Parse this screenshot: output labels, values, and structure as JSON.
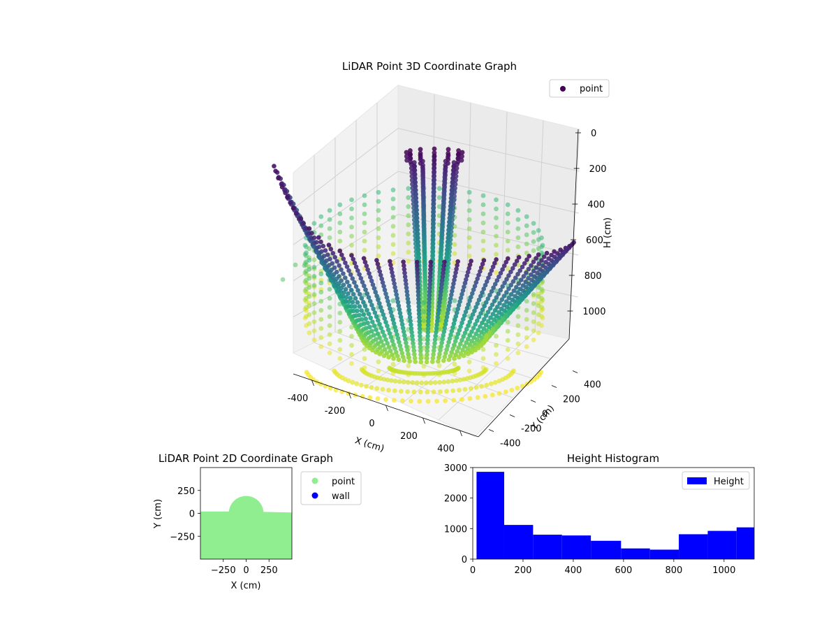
{
  "chart_data": [
    {
      "type": "scatter",
      "projection": "3d",
      "title": "LiDAR Point 3D Coordinate Graph",
      "xlabel": "X (cm)",
      "ylabel": "Y (cm)",
      "zlabel": "H (cm)",
      "xlim": [
        -500,
        500
      ],
      "ylim": [
        -500,
        500
      ],
      "zlim": [
        1120,
        0
      ],
      "z_inverted": true,
      "x_ticks": [
        "-400",
        "-200",
        "0",
        "200",
        "400"
      ],
      "y_ticks": [
        "-400",
        "-200",
        "0",
        "200",
        "400"
      ],
      "z_ticks": [
        "0",
        "200",
        "400",
        "600",
        "800",
        "1000"
      ],
      "colormap": "viridis",
      "legend": {
        "entries": [
          "point"
        ],
        "placement": "top-right"
      },
      "series": [
        {
          "name": "point",
          "color_by": "H",
          "components": [
            {
              "shape": "vertical column",
              "center": [
                0,
                0
              ],
              "radius": 60,
              "h_range": [
                0,
                1100
              ]
            },
            {
              "shape": "half-ring of tilted planar streaks",
              "center": [
                0,
                0
              ],
              "radius": 500,
              "h_range": [
                0,
                1120
              ]
            },
            {
              "shape": "cylindrical wall rings",
              "center": [
                0,
                0
              ],
              "radius": 450,
              "h_range": [
                650,
                1120
              ]
            }
          ]
        }
      ]
    },
    {
      "type": "scatter",
      "title": "LiDAR Point 2D Coordinate Graph",
      "xlabel": "X (cm)",
      "ylabel": "Y (cm)",
      "xlim": [
        -500,
        500
      ],
      "ylim": [
        -500,
        500
      ],
      "x_ticks": [
        "−250",
        "0",
        "250"
      ],
      "y_ticks": [
        "−250",
        "0",
        "250"
      ],
      "legend": {
        "entries": [
          "point",
          "wall"
        ],
        "placement": "outside-right"
      },
      "series": [
        {
          "name": "point",
          "color": "#90ee90",
          "region": {
            "floor_below_y": 20,
            "semicircle": {
              "center": [
                0,
                0
              ],
              "radius": 190
            },
            "right_step_y": 10
          }
        },
        {
          "name": "wall",
          "color": "#0000ff",
          "points": []
        }
      ]
    },
    {
      "type": "bar",
      "subtype": "histogram",
      "title": "Height Histogram",
      "xlabel": "",
      "ylabel": "",
      "xlim": [
        0,
        1120
      ],
      "ylim": [
        0,
        3000
      ],
      "x_ticks": [
        "0",
        "200",
        "400",
        "600",
        "800",
        "1000"
      ],
      "y_ticks": [
        "0",
        "1000",
        "2000",
        "3000"
      ],
      "legend": {
        "entries": [
          "Height"
        ],
        "placement": "top-right"
      },
      "series": [
        {
          "name": "Height",
          "color": "#0000ff",
          "bins": [
            [
              15,
              125,
              2860
            ],
            [
              125,
              240,
              1120
            ],
            [
              240,
              355,
              800
            ],
            [
              355,
              470,
              775
            ],
            [
              470,
              590,
              600
            ],
            [
              590,
              705,
              350
            ],
            [
              705,
              820,
              310
            ],
            [
              820,
              935,
              815
            ],
            [
              935,
              1050,
              925
            ],
            [
              1050,
              1120,
              1040
            ]
          ]
        }
      ]
    }
  ]
}
